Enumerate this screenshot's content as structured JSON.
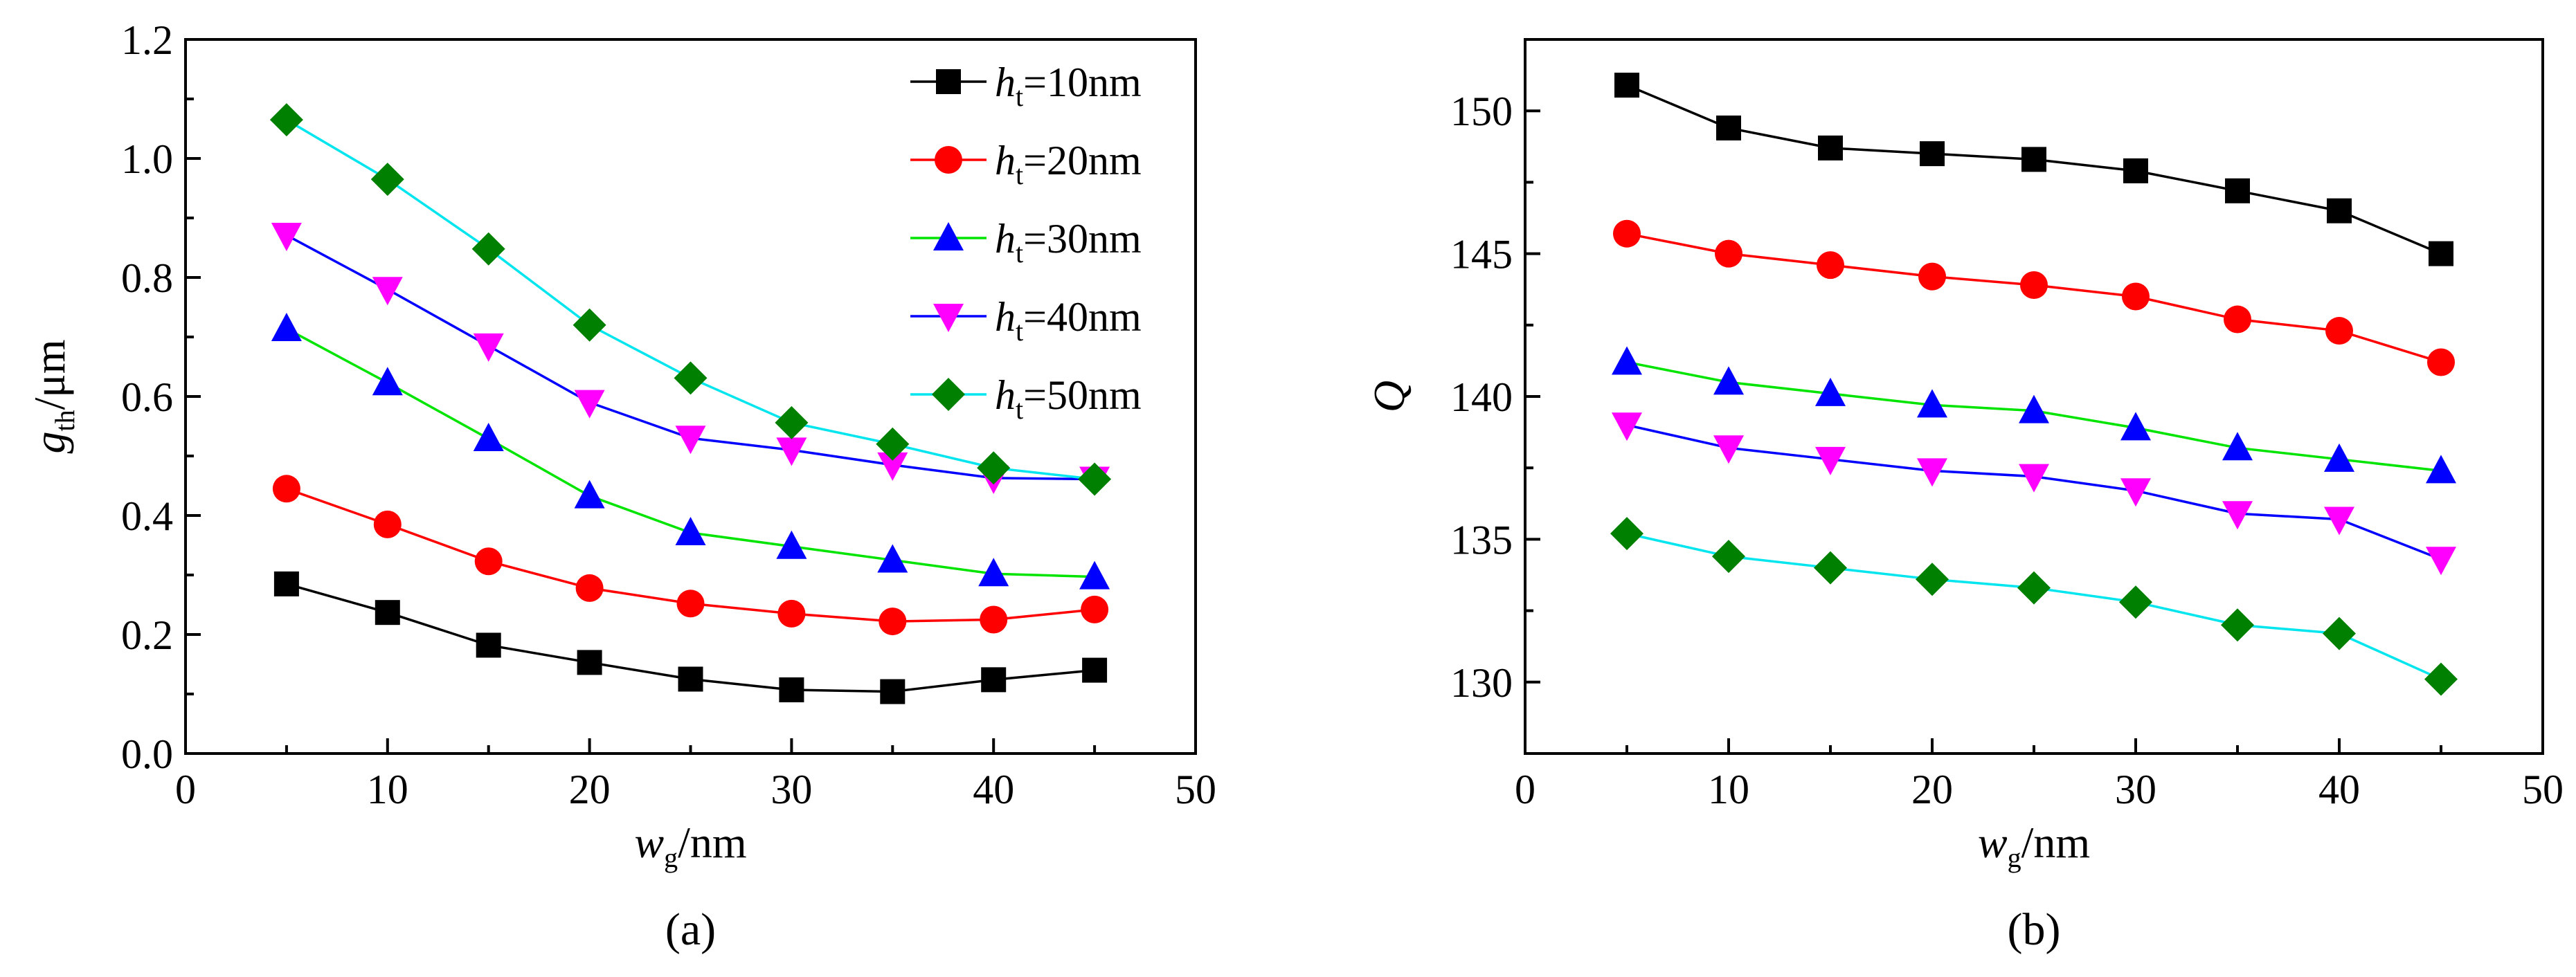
{
  "legend": {
    "symbol": "h",
    "subscript": "t",
    "entries": [
      "=10nm",
      "=20nm",
      "=30nm",
      "=40nm",
      "=50nm"
    ]
  },
  "chart_data": [
    {
      "id": "a",
      "type": "line",
      "caption": "(a)",
      "xlabel": {
        "main": "w",
        "sub": "g",
        "suffix": "/nm"
      },
      "ylabel": {
        "main": "g",
        "sub": "th",
        "suffix": "/μm"
      },
      "xlim": [
        0,
        50
      ],
      "ylim": [
        0,
        1.2
      ],
      "xticks": [
        0,
        10,
        20,
        30,
        40,
        50
      ],
      "yticks": [
        0.0,
        0.2,
        0.4,
        0.6,
        0.8,
        1.0,
        1.2
      ],
      "ytick_decimals": 1,
      "x": [
        5,
        10,
        15,
        20,
        25,
        30,
        35,
        40,
        45
      ],
      "legend_position": "top-right",
      "series": [
        {
          "name": "ht=10nm",
          "values": [
            0.285,
            0.237,
            0.182,
            0.153,
            0.125,
            0.107,
            0.104,
            0.124,
            0.14
          ]
        },
        {
          "name": "ht=20nm",
          "values": [
            0.445,
            0.385,
            0.323,
            0.278,
            0.252,
            0.235,
            0.222,
            0.225,
            0.242
          ]
        },
        {
          "name": "ht=30nm",
          "values": [
            0.714,
            0.623,
            0.529,
            0.433,
            0.371,
            0.348,
            0.325,
            0.302,
            0.297
          ]
        },
        {
          "name": "ht=40nm",
          "values": [
            0.871,
            0.78,
            0.685,
            0.59,
            0.53,
            0.51,
            0.485,
            0.463,
            0.461
          ]
        },
        {
          "name": "ht=50nm",
          "values": [
            1.065,
            0.965,
            0.848,
            0.72,
            0.631,
            0.556,
            0.52,
            0.48,
            0.461
          ]
        }
      ]
    },
    {
      "id": "b",
      "type": "line",
      "caption": "(b)",
      "xlabel": {
        "main": "w",
        "sub": "g",
        "suffix": "/nm"
      },
      "ylabel": {
        "main": "Q",
        "sub": "",
        "suffix": ""
      },
      "xlim": [
        0,
        50
      ],
      "ylim": [
        127.5,
        152.5
      ],
      "xticks": [
        0,
        10,
        20,
        30,
        40,
        50
      ],
      "yticks": [
        130,
        135,
        140,
        145,
        150
      ],
      "ytick_decimals": 0,
      "x": [
        5,
        10,
        15,
        20,
        25,
        30,
        35,
        40,
        45
      ],
      "series": [
        {
          "name": "ht=10nm",
          "values": [
            150.9,
            149.4,
            148.7,
            148.5,
            148.3,
            147.9,
            147.2,
            146.5,
            145.0
          ]
        },
        {
          "name": "ht=20nm",
          "values": [
            145.7,
            145.0,
            144.6,
            144.2,
            143.9,
            143.5,
            142.7,
            142.3,
            141.2
          ]
        },
        {
          "name": "ht=30nm",
          "values": [
            141.2,
            140.5,
            140.1,
            139.7,
            139.5,
            138.9,
            138.2,
            137.8,
            137.4
          ]
        },
        {
          "name": "ht=40nm",
          "values": [
            139.0,
            138.2,
            137.8,
            137.4,
            137.2,
            136.7,
            135.9,
            135.7,
            134.3
          ]
        },
        {
          "name": "ht=50nm",
          "values": [
            135.2,
            134.4,
            134.0,
            133.6,
            133.3,
            132.8,
            132.0,
            131.7,
            130.1
          ]
        }
      ]
    }
  ],
  "series_styles": [
    {
      "line": "#000000",
      "marker": "#000000",
      "shape": "square"
    },
    {
      "line": "#ff0000",
      "marker": "#ff0000",
      "shape": "circle"
    },
    {
      "line": "#00e400",
      "marker": "#0000ff",
      "shape": "triangle-up"
    },
    {
      "line": "#0000ff",
      "marker": "#ff00ff",
      "shape": "triangle-down"
    },
    {
      "line": "#00e5ee",
      "marker": "#008000",
      "shape": "diamond"
    }
  ]
}
